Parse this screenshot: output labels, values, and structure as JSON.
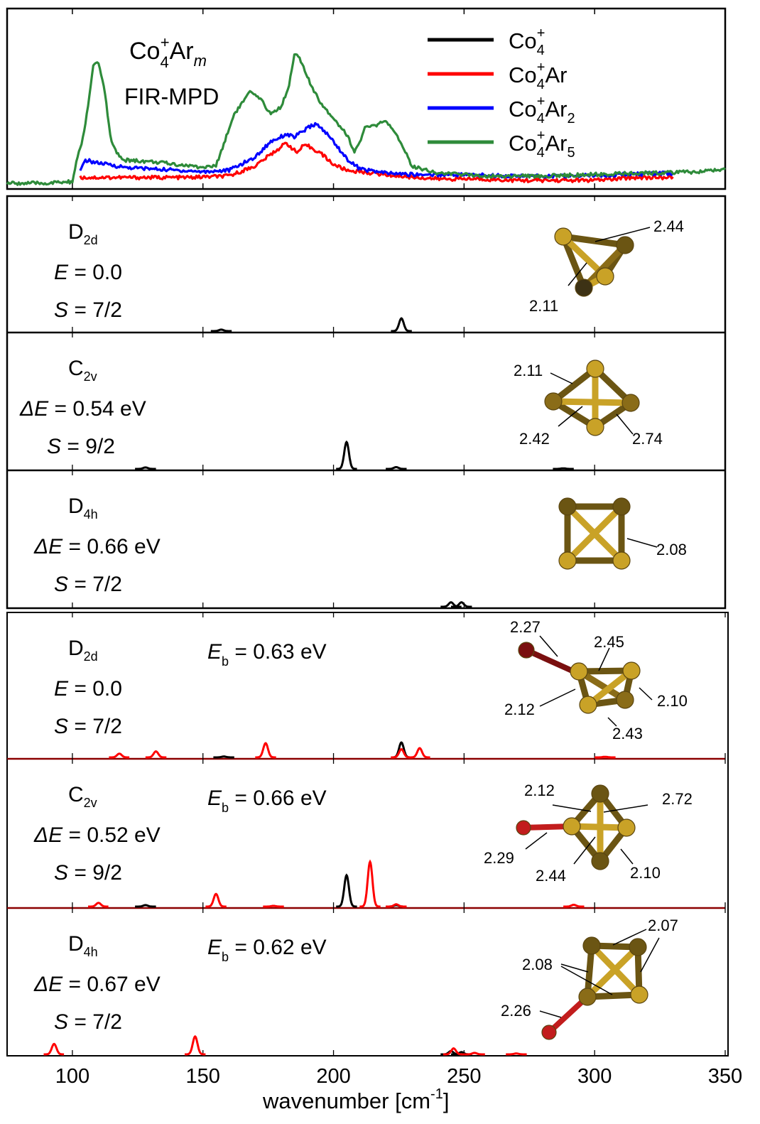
{
  "chart_data": {
    "type": "line",
    "xlabel": "wavenumber [cm",
    "xlabel_sup": "-1",
    "xlabel_end": "]",
    "xlim": [
      75,
      350
    ],
    "xticks": [
      100,
      150,
      200,
      250,
      300,
      350
    ],
    "xtick_labels": [
      "100",
      "150",
      "200",
      "250",
      "300",
      "350"
    ],
    "experiment": {
      "label_main": "Co",
      "label_sub": "4",
      "label_sup": "+",
      "label_ar": "Ar",
      "label_m": "m",
      "label_method": "FIR-MPD",
      "legend_placement": "top-right",
      "ylim": [
        0,
        1.15
      ],
      "series": [
        {
          "name": "Co4+",
          "label": [
            "Co",
            "4",
            "+",
            ""
          ],
          "color": "#000000",
          "x": [],
          "y": []
        },
        {
          "name": "Co4+Ar",
          "label": [
            "Co",
            "4",
            "+",
            "Ar"
          ],
          "color": "#ff0000",
          "x": [
            103,
            115,
            130,
            145,
            160,
            170,
            176,
            182,
            186,
            188,
            190,
            195,
            200,
            205,
            215,
            225,
            240,
            255,
            270,
            285,
            300,
            315,
            330
          ],
          "y": [
            0.06,
            0.06,
            0.06,
            0.06,
            0.07,
            0.14,
            0.22,
            0.3,
            0.23,
            0.27,
            0.28,
            0.23,
            0.15,
            0.11,
            0.09,
            0.07,
            0.05,
            0.05,
            0.04,
            0.04,
            0.04,
            0.06,
            0.06
          ]
        },
        {
          "name": "Co4+Ar2",
          "label": [
            "Co",
            "4",
            "+",
            "Ar",
            "2"
          ],
          "color": "#0000ff",
          "x": [
            103,
            105,
            110,
            120,
            130,
            140,
            150,
            160,
            170,
            176,
            182,
            185,
            190,
            193,
            196,
            200,
            205,
            210,
            220,
            230,
            250,
            270,
            290,
            310,
            330
          ],
          "y": [
            0.1,
            0.18,
            0.16,
            0.13,
            0.12,
            0.11,
            0.1,
            0.11,
            0.2,
            0.31,
            0.36,
            0.34,
            0.4,
            0.43,
            0.39,
            0.31,
            0.19,
            0.12,
            0.09,
            0.08,
            0.08,
            0.07,
            0.07,
            0.08,
            0.09
          ]
        },
        {
          "name": "Co4+Ar5",
          "label": [
            "Co",
            "4",
            "+",
            "Ar",
            "5"
          ],
          "color": "#2e8b3a",
          "x": [
            75,
            90,
            100,
            102,
            104,
            106,
            108,
            110,
            112,
            115,
            118,
            120,
            130,
            140,
            150,
            155,
            162,
            168,
            172,
            176,
            180,
            183,
            185,
            187,
            189,
            192,
            195,
            200,
            205,
            208,
            210,
            212,
            216,
            220,
            222,
            226,
            230,
            240,
            250,
            260,
            280,
            300,
            320,
            340,
            350
          ],
          "y": [
            0.02,
            0.02,
            0.03,
            0.2,
            0.33,
            0.55,
            0.83,
            0.85,
            0.7,
            0.3,
            0.2,
            0.18,
            0.17,
            0.15,
            0.13,
            0.14,
            0.5,
            0.65,
            0.6,
            0.5,
            0.55,
            0.7,
            0.92,
            0.88,
            0.8,
            0.67,
            0.58,
            0.47,
            0.36,
            0.24,
            0.3,
            0.4,
            0.42,
            0.45,
            0.4,
            0.3,
            0.14,
            0.09,
            0.08,
            0.07,
            0.07,
            0.08,
            0.09,
            0.1,
            0.12
          ]
        }
      ]
    },
    "panels": [
      {
        "group": "Co4+",
        "sym": "D",
        "sym_sub": "2d",
        "energy_prefix": "",
        "energy": "= 0.0",
        "spin": "= 7/2",
        "eb": "",
        "stick_black": [
          [
            157,
            0.1
          ],
          [
            226,
            0.85
          ]
        ],
        "stick_red": [],
        "bonds": [
          {
            "v": "2.44"
          },
          {
            "v": "2.11"
          }
        ]
      },
      {
        "group": "Co4+",
        "sym": "C",
        "sym_sub": "2v",
        "energy_prefix": "Δ",
        "energy": "= 0.54 eV",
        "spin": "= 9/2",
        "eb": "",
        "stick_black": [
          [
            128,
            0.1
          ],
          [
            205,
            1.8
          ],
          [
            224,
            0.12
          ],
          [
            288,
            0.04
          ]
        ],
        "stick_red": [],
        "bonds": [
          {
            "v": "2.11"
          },
          {
            "v": "2.42"
          },
          {
            "v": "2.74"
          }
        ]
      },
      {
        "group": "Co4+",
        "sym": "D",
        "sym_sub": "4h",
        "energy_prefix": "Δ",
        "energy": "= 0.66 eV",
        "spin": "= 7/2",
        "eb": "",
        "stick_black": [
          [
            245,
            0.3
          ],
          [
            249,
            0.3
          ]
        ],
        "stick_red": [],
        "bonds": [
          {
            "v": "2.08"
          }
        ]
      },
      {
        "group": "Co4+Ar",
        "sym": "D",
        "sym_sub": "2d",
        "energy_prefix": "",
        "energy": "= 0.0",
        "spin": "= 7/2",
        "eb": "= 0.63 eV",
        "stick_black": [
          [
            158,
            0.06
          ],
          [
            226,
            1.0
          ]
        ],
        "stick_red": [
          [
            118,
            0.25
          ],
          [
            132,
            0.4
          ],
          [
            174,
            0.95
          ],
          [
            226,
            0.55
          ],
          [
            233,
            0.62
          ],
          [
            304,
            0.04
          ]
        ],
        "bonds": [
          {
            "v": "2.27"
          },
          {
            "v": "2.45"
          },
          {
            "v": "2.12"
          },
          {
            "v": "2.10"
          },
          {
            "v": "2.43"
          }
        ]
      },
      {
        "group": "Co4+Ar",
        "sym": "C",
        "sym_sub": "2v",
        "energy_prefix": "Δ",
        "energy": "= 0.52 eV",
        "spin": "= 9/2",
        "eb": "= 0.66 eV",
        "stick_black": [
          [
            128,
            0.1
          ],
          [
            205,
            2.1
          ],
          [
            224,
            0.1
          ]
        ],
        "stick_red": [
          [
            110,
            0.25
          ],
          [
            155,
            0.85
          ],
          [
            177,
            0.05
          ],
          [
            214,
            3.0
          ],
          [
            224,
            0.15
          ],
          [
            292,
            0.12
          ]
        ],
        "bonds": [
          {
            "v": "2.12"
          },
          {
            "v": "2.72"
          },
          {
            "v": "2.29"
          },
          {
            "v": "2.44"
          },
          {
            "v": "2.10"
          }
        ]
      },
      {
        "group": "Co4+Ar",
        "sym": "D",
        "sym_sub": "4h",
        "energy_prefix": "Δ",
        "energy": "= 0.67 eV",
        "spin": "= 7/2",
        "eb": "= 0.62 eV",
        "stick_black": [
          [
            245,
            0.22
          ],
          [
            249,
            0.15
          ]
        ],
        "stick_red": [
          [
            93,
            0.7
          ],
          [
            147,
            1.2
          ],
          [
            246,
            0.4
          ],
          [
            254,
            0.1
          ],
          [
            270,
            0.06
          ]
        ],
        "bonds": [
          {
            "v": "2.07"
          },
          {
            "v": "2.08"
          },
          {
            "v": "2.26"
          }
        ]
      }
    ],
    "energy_symbol": "E",
    "spin_symbol": "S",
    "eb_symbol": "E",
    "eb_sub": "b",
    "grid": false
  },
  "colors": {
    "cluster_gold": "#c9a227",
    "cluster_dark": "#6b5513",
    "argon": "#c21d1d"
  }
}
